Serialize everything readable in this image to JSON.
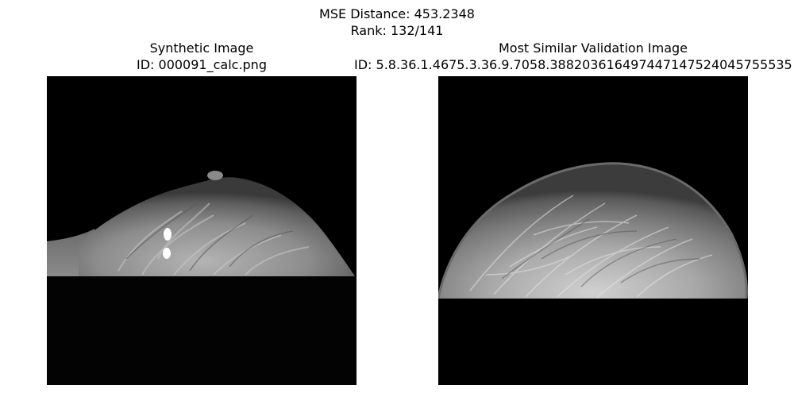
{
  "figure": {
    "suptitle_line1": "MSE Distance: 453.2348",
    "suptitle_line2": "Rank: 132/141"
  },
  "left_panel": {
    "title": "Synthetic Image",
    "id_text": "ID: 000091_calc.png",
    "image_icon": "mammogram-image"
  },
  "right_panel": {
    "title": "Most Similar Validation Image",
    "id_text": "ID: 5.8.36.1.4675.3.36.9.7058.388203616497447147524045755535",
    "image_icon": "mammogram-image"
  },
  "colors": {
    "background": "#ffffff",
    "image_background": "#000000",
    "tissue": "#8a8a8a",
    "calcification": "#ffffff"
  }
}
